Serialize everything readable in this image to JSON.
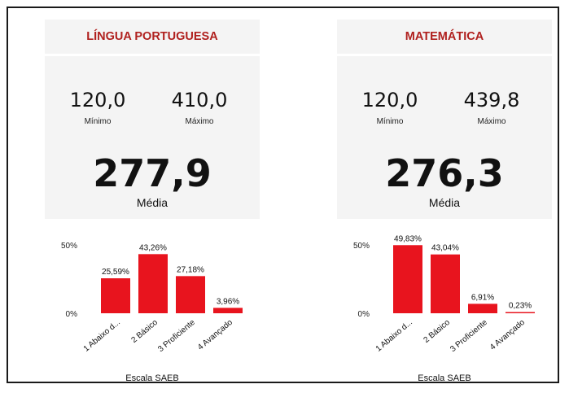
{
  "xlabel": "Escala SAEB",
  "yticks": [
    "50%",
    "0%"
  ],
  "panels": [
    {
      "title": "LÍNGUA PORTUGUESA",
      "min_value": "120,0",
      "min_label": "Mínimo",
      "max_value": "410,0",
      "max_label": "Máximo",
      "avg_value": "277,9",
      "avg_label": "Média"
    },
    {
      "title": "MATEMÁTICA",
      "min_value": "120,0",
      "min_label": "Mínimo",
      "max_value": "439,8",
      "max_label": "Máximo",
      "avg_value": "276,3",
      "avg_label": "Média"
    }
  ],
  "bar_color": "#e8141e",
  "title_color": "#b0201e",
  "chart_data": [
    {
      "type": "bar",
      "categories": [
        "1 Abaixo d...",
        "2 Básico",
        "3 Proficiente",
        "4 Avançado"
      ],
      "values": [
        25.59,
        43.26,
        27.18,
        3.96
      ],
      "value_labels": [
        "25,59%",
        "43,26%",
        "27,18%",
        "3,96%"
      ],
      "xlabel": "Escala SAEB",
      "ylabel": "",
      "ylim": [
        0,
        50
      ],
      "ytick_labels": [
        "0%",
        "50%"
      ]
    },
    {
      "type": "bar",
      "categories": [
        "1 Abaixo d...",
        "2 Básico",
        "3 Proficiente",
        "4 Avançado"
      ],
      "values": [
        49.83,
        43.04,
        6.91,
        0.23
      ],
      "value_labels": [
        "49,83%",
        "43,04%",
        "6,91%",
        "0,23%"
      ],
      "xlabel": "Escala SAEB",
      "ylabel": "",
      "ylim": [
        0,
        50
      ],
      "ytick_labels": [
        "0%",
        "50%"
      ]
    }
  ]
}
